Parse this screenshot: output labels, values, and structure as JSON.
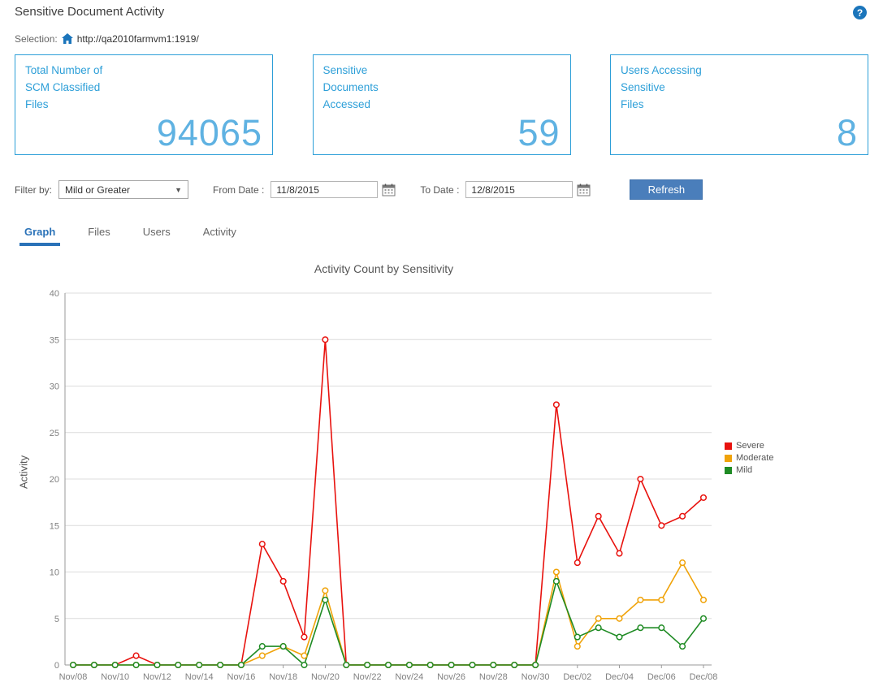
{
  "header": {
    "title": "Sensitive Document Activity",
    "help_icon": "?"
  },
  "selection": {
    "label": "Selection:",
    "url": "http://qa2010farmvm1:1919/"
  },
  "cards": [
    {
      "title_lines": [
        "Total Number of",
        "SCM Classified",
        "Files"
      ],
      "value": "94065"
    },
    {
      "title_lines": [
        "Sensitive",
        "Documents",
        "Accessed"
      ],
      "value": "59"
    },
    {
      "title_lines": [
        "Users Accessing",
        "Sensitive",
        "Files"
      ],
      "value": "8"
    }
  ],
  "filters": {
    "filter_by_label": "Filter by:",
    "filter_value": "Mild or Greater",
    "from_label": "From Date :",
    "from_value": "11/8/2015",
    "to_label": "To Date :",
    "to_value": "12/8/2015",
    "refresh_label": "Refresh"
  },
  "tabs": [
    {
      "label": "Graph",
      "active": true
    },
    {
      "label": "Files",
      "active": false
    },
    {
      "label": "Users",
      "active": false
    },
    {
      "label": "Activity",
      "active": false
    }
  ],
  "colors": {
    "accent_blue": "#2d9fd8",
    "value_blue": "#5fb2e2",
    "button_blue": "#4a7ebb",
    "tab_active_blue": "#2a72b8",
    "severe": "#e8120e",
    "moderate": "#f0a30a",
    "mild": "#1f8b24"
  },
  "chart_data": {
    "type": "line",
    "title": "Activity Count by Sensitivity",
    "xlabel": "",
    "ylabel": "Activity",
    "ylim": [
      0,
      40
    ],
    "y_ticks": [
      0,
      5,
      10,
      15,
      20,
      25,
      30,
      35,
      40
    ],
    "grid": "horizontal",
    "legend_position": "right",
    "x": [
      "Nov/08",
      "Nov/09",
      "Nov/10",
      "Nov/11",
      "Nov/12",
      "Nov/13",
      "Nov/14",
      "Nov/15",
      "Nov/16",
      "Nov/17",
      "Nov/18",
      "Nov/19",
      "Nov/20",
      "Nov/21",
      "Nov/22",
      "Nov/23",
      "Nov/24",
      "Nov/25",
      "Nov/26",
      "Nov/27",
      "Nov/28",
      "Nov/29",
      "Nov/30",
      "Dec/01",
      "Dec/02",
      "Dec/03",
      "Dec/04",
      "Dec/05",
      "Dec/06",
      "Dec/07",
      "Dec/08"
    ],
    "x_tick_labels": [
      "Nov/08",
      "Nov/10",
      "Nov/12",
      "Nov/14",
      "Nov/16",
      "Nov/18",
      "Nov/20",
      "Nov/22",
      "Nov/24",
      "Nov/26",
      "Nov/28",
      "Nov/30",
      "Dec/02",
      "Dec/04",
      "Dec/06",
      "Dec/08"
    ],
    "series": [
      {
        "name": "Severe",
        "color": "#e8120e",
        "values": [
          0,
          0,
          0,
          1,
          0,
          0,
          0,
          0,
          0,
          13,
          9,
          3,
          35,
          0,
          0,
          0,
          0,
          0,
          0,
          0,
          0,
          0,
          0,
          28,
          11,
          16,
          12,
          20,
          15,
          16,
          18
        ]
      },
      {
        "name": "Moderate",
        "color": "#f0a30a",
        "values": [
          0,
          0,
          0,
          0,
          0,
          0,
          0,
          0,
          0,
          1,
          2,
          1,
          8,
          0,
          0,
          0,
          0,
          0,
          0,
          0,
          0,
          0,
          0,
          10,
          2,
          5,
          5,
          7,
          7,
          11,
          7
        ]
      },
      {
        "name": "Mild",
        "color": "#1f8b24",
        "values": [
          0,
          0,
          0,
          0,
          0,
          0,
          0,
          0,
          0,
          2,
          2,
          0,
          7,
          0,
          0,
          0,
          0,
          0,
          0,
          0,
          0,
          0,
          0,
          9,
          3,
          4,
          3,
          4,
          4,
          2,
          5
        ]
      }
    ]
  }
}
